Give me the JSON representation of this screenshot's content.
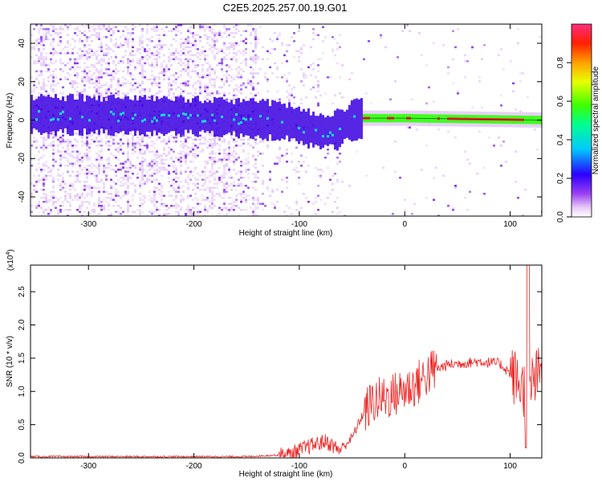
{
  "title": "C2E5.2025.257.00.19.G01",
  "chart_data": [
    {
      "type": "heatmap",
      "xlabel": "Height of straight line (km)",
      "ylabel": "Frequency (Hz)",
      "xlim": [
        -355,
        130
      ],
      "ylim": [
        -50,
        50
      ],
      "xticks": [
        -300,
        -200,
        -100,
        0,
        100
      ],
      "yticks": [
        -40,
        -20,
        0,
        20,
        40
      ],
      "colorbar": {
        "label": "Normalized spectral amplitude",
        "range": [
          0,
          1
        ],
        "ticks": [
          "0.0",
          "0.2",
          "0.4",
          "0.6",
          "0.8"
        ],
        "tick_values": [
          0,
          0.2,
          0.4,
          0.6,
          0.8
        ],
        "colormap": "rainbow"
      },
      "colors": {
        "low": "#e3c4f7",
        "mid": "#7a1fe8",
        "deep": "#3a00e0",
        "band_cyan": "#12e0e6",
        "band_green": "#40ff20",
        "band_red": "#ff1f2e",
        "band_dark": "#1a1a1a"
      },
      "ridge": {
        "center_hz": [
          {
            "x": -355,
            "y": 3
          },
          {
            "x": -200,
            "y": 2
          },
          {
            "x": -150,
            "y": 1
          },
          {
            "x": -110,
            "y": -1
          },
          {
            "x": -95,
            "y": -4
          },
          {
            "x": -80,
            "y": -6
          },
          {
            "x": -65,
            "y": -5
          },
          {
            "x": -50,
            "y": 0
          },
          {
            "x": -40,
            "y": 1
          },
          {
            "x": 0,
            "y": 1
          },
          {
            "x": 130,
            "y": 0
          }
        ]
      }
    },
    {
      "type": "line",
      "xlabel": "Height of straight line (km)",
      "ylabel": "SNR (10 * v/v)",
      "y_multiplier": "(x10",
      "y_multiplier_exp": "4",
      "y_multiplier_close": ")",
      "xlim": [
        -355,
        130
      ],
      "ylim": [
        0,
        2.9
      ],
      "xticks": [
        -300,
        -200,
        -100,
        0,
        100
      ],
      "yticks": [
        "0.0",
        "0.5",
        "1.0",
        "1.5",
        "2.0",
        "2.5"
      ],
      "ytick_values": [
        0,
        0.5,
        1.0,
        1.5,
        2.0,
        2.5
      ],
      "series": [
        {
          "color": "#ee2222",
          "trend": [
            {
              "x": -355,
              "y": 0.02
            },
            {
              "x": -150,
              "y": 0.02
            },
            {
              "x": -110,
              "y": 0.05
            },
            {
              "x": -90,
              "y": 0.18
            },
            {
              "x": -75,
              "y": 0.25
            },
            {
              "x": -62,
              "y": 0.12
            },
            {
              "x": -50,
              "y": 0.3
            },
            {
              "x": -40,
              "y": 0.65
            },
            {
              "x": -30,
              "y": 0.85
            },
            {
              "x": -10,
              "y": 0.95
            },
            {
              "x": 10,
              "y": 1.1
            },
            {
              "x": 25,
              "y": 1.3
            },
            {
              "x": 40,
              "y": 1.4
            },
            {
              "x": 70,
              "y": 1.45
            },
            {
              "x": 90,
              "y": 1.42
            },
            {
              "x": 105,
              "y": 1.2
            },
            {
              "x": 115,
              "y": 1.0
            },
            {
              "x": 125,
              "y": 1.2
            },
            {
              "x": 130,
              "y": 1.3
            }
          ],
          "peak": {
            "x": 117,
            "y": 2.9
          }
        }
      ]
    }
  ]
}
